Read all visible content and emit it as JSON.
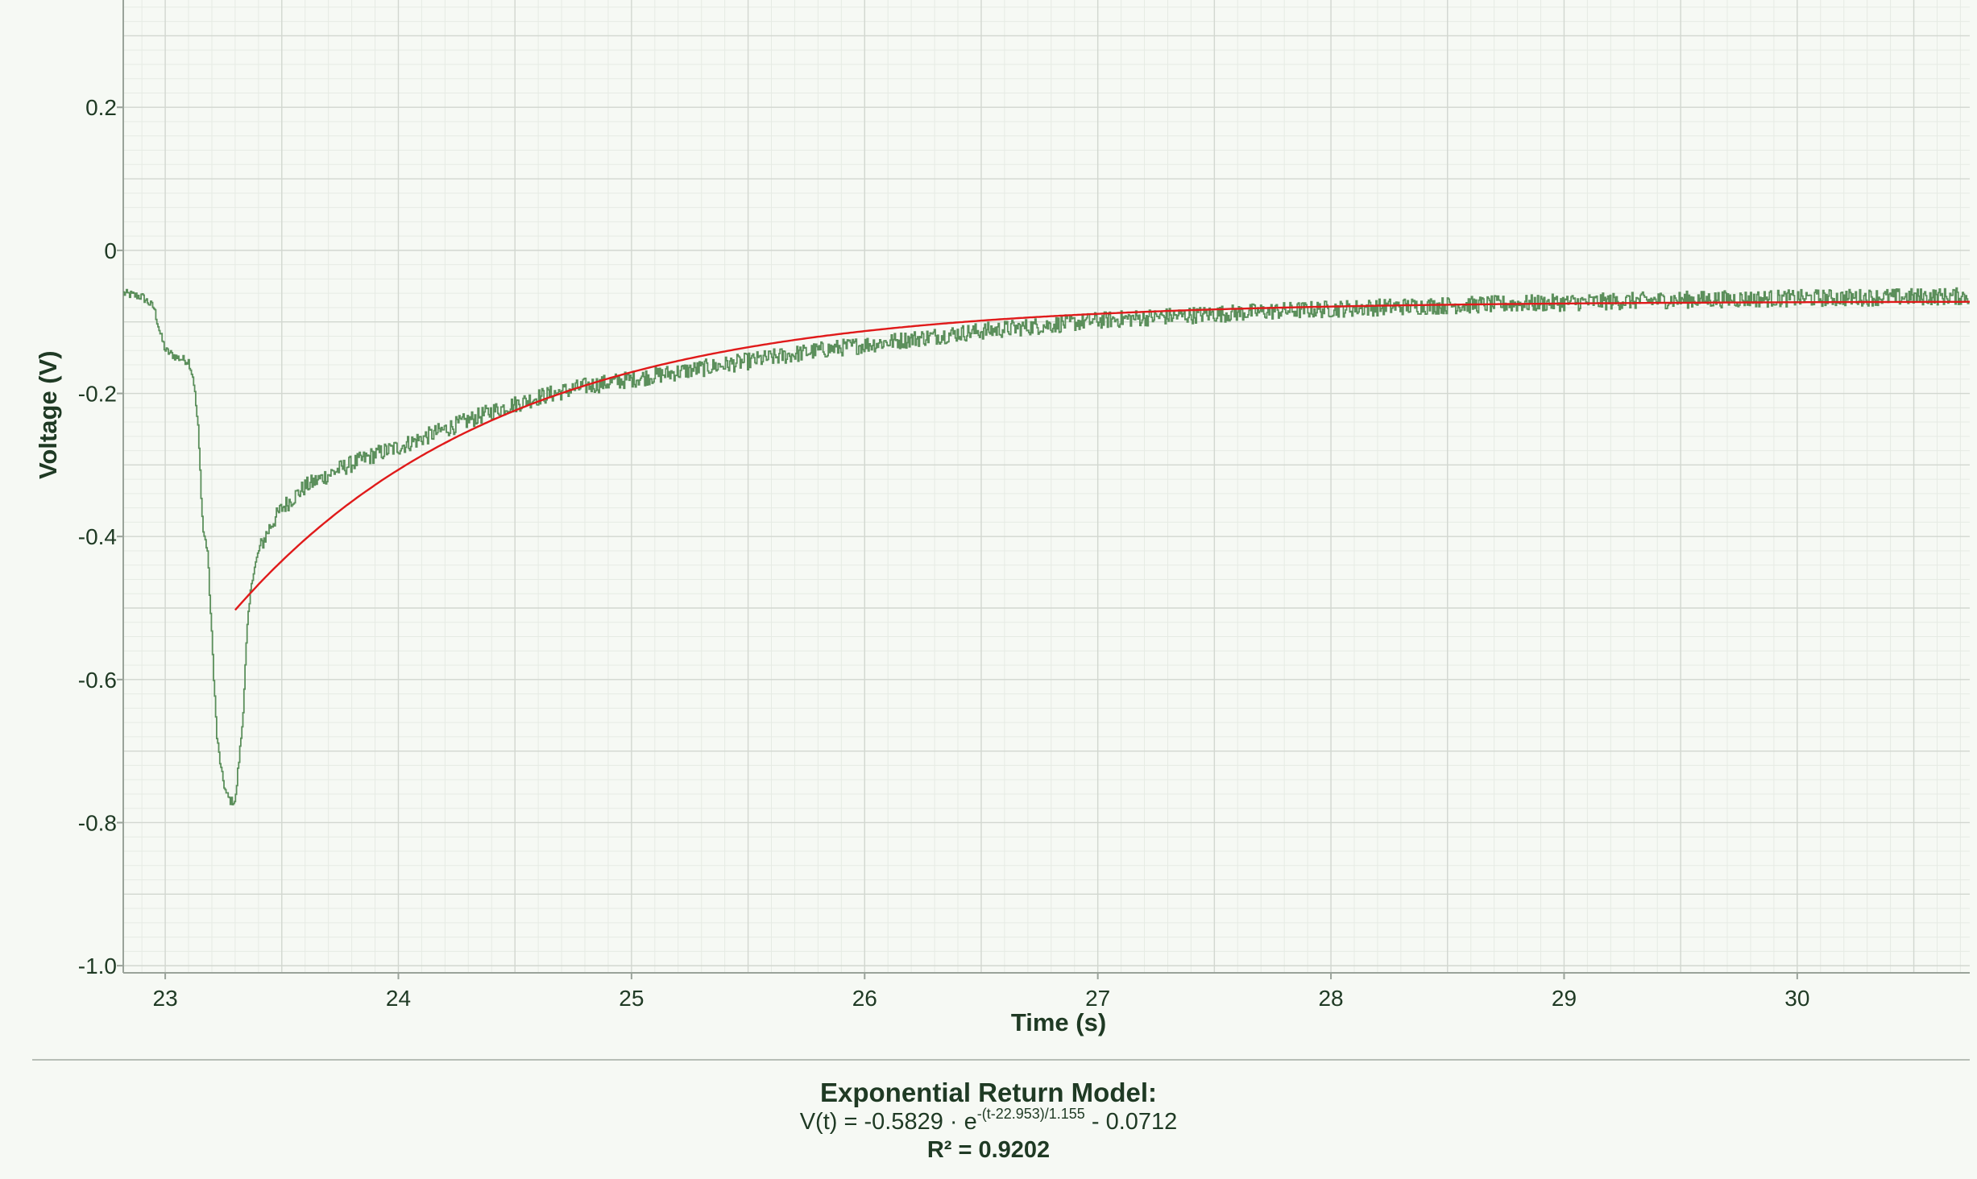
{
  "chart_data": {
    "type": "line",
    "title": "",
    "xlabel": "Time (s)",
    "ylabel": "Voltage (V)",
    "xlim": [
      22.82,
      30.74
    ],
    "ylim": [
      -1.01,
      0.35
    ],
    "x_ticks": [
      23,
      24,
      25,
      26,
      27,
      28,
      29,
      30
    ],
    "y_ticks": [
      0.2,
      0,
      -0.2,
      -0.4,
      -0.6,
      -0.8,
      -1.0
    ],
    "y_tick_labels": [
      "0.2",
      "0",
      "-0.2",
      "-0.4",
      "-0.6",
      "-0.8",
      "-1.0"
    ],
    "grid": true,
    "minor_grid": true,
    "series": [
      {
        "role": "measured",
        "color": "#5b8f5b",
        "style": "stepped-noisy",
        "x": [
          22.82,
          22.9,
          22.95,
          22.98,
          23.0,
          23.05,
          23.1,
          23.12,
          23.14,
          23.16,
          23.18,
          23.2,
          23.22,
          23.24,
          23.26,
          23.28,
          23.3,
          23.31,
          23.33,
          23.35,
          23.37,
          23.4,
          23.45,
          23.5,
          23.6,
          23.75,
          23.9,
          24.0,
          24.2,
          24.4,
          24.6,
          24.8,
          25.0,
          25.2,
          25.4,
          25.6,
          25.8,
          26.0,
          26.2,
          26.4,
          26.6,
          26.8,
          27.0,
          27.25,
          27.5,
          27.75,
          28.0,
          28.25,
          28.5,
          28.75,
          29.0,
          29.25,
          29.5,
          29.75,
          30.0,
          30.25,
          30.5,
          30.74
        ],
        "y": [
          -0.06,
          -0.065,
          -0.08,
          -0.12,
          -0.14,
          -0.15,
          -0.155,
          -0.18,
          -0.25,
          -0.39,
          -0.42,
          -0.55,
          -0.68,
          -0.73,
          -0.76,
          -0.77,
          -0.77,
          -0.73,
          -0.66,
          -0.53,
          -0.46,
          -0.42,
          -0.385,
          -0.36,
          -0.33,
          -0.305,
          -0.285,
          -0.275,
          -0.25,
          -0.225,
          -0.205,
          -0.19,
          -0.18,
          -0.17,
          -0.16,
          -0.15,
          -0.14,
          -0.132,
          -0.124,
          -0.116,
          -0.11,
          -0.104,
          -0.098,
          -0.093,
          -0.089,
          -0.085,
          -0.082,
          -0.079,
          -0.077,
          -0.075,
          -0.073,
          -0.071,
          -0.069,
          -0.068,
          -0.067,
          -0.066,
          -0.065,
          -0.064
        ]
      },
      {
        "role": "fit",
        "color": "#e01a1a",
        "model": {
          "A": -0.5829,
          "t0": 22.953,
          "tau": 1.155,
          "C": -0.0712,
          "t_start": 23.3,
          "t_end": 30.74
        }
      }
    ]
  },
  "model": {
    "title": "Exponential Return Model:",
    "equation_prefix": "V(t) = -0.5829 · e",
    "equation_exponent": "-(t-22.953)/1.155",
    "equation_suffix": " - 0.0712",
    "r_squared": "R² = 0.9202"
  }
}
